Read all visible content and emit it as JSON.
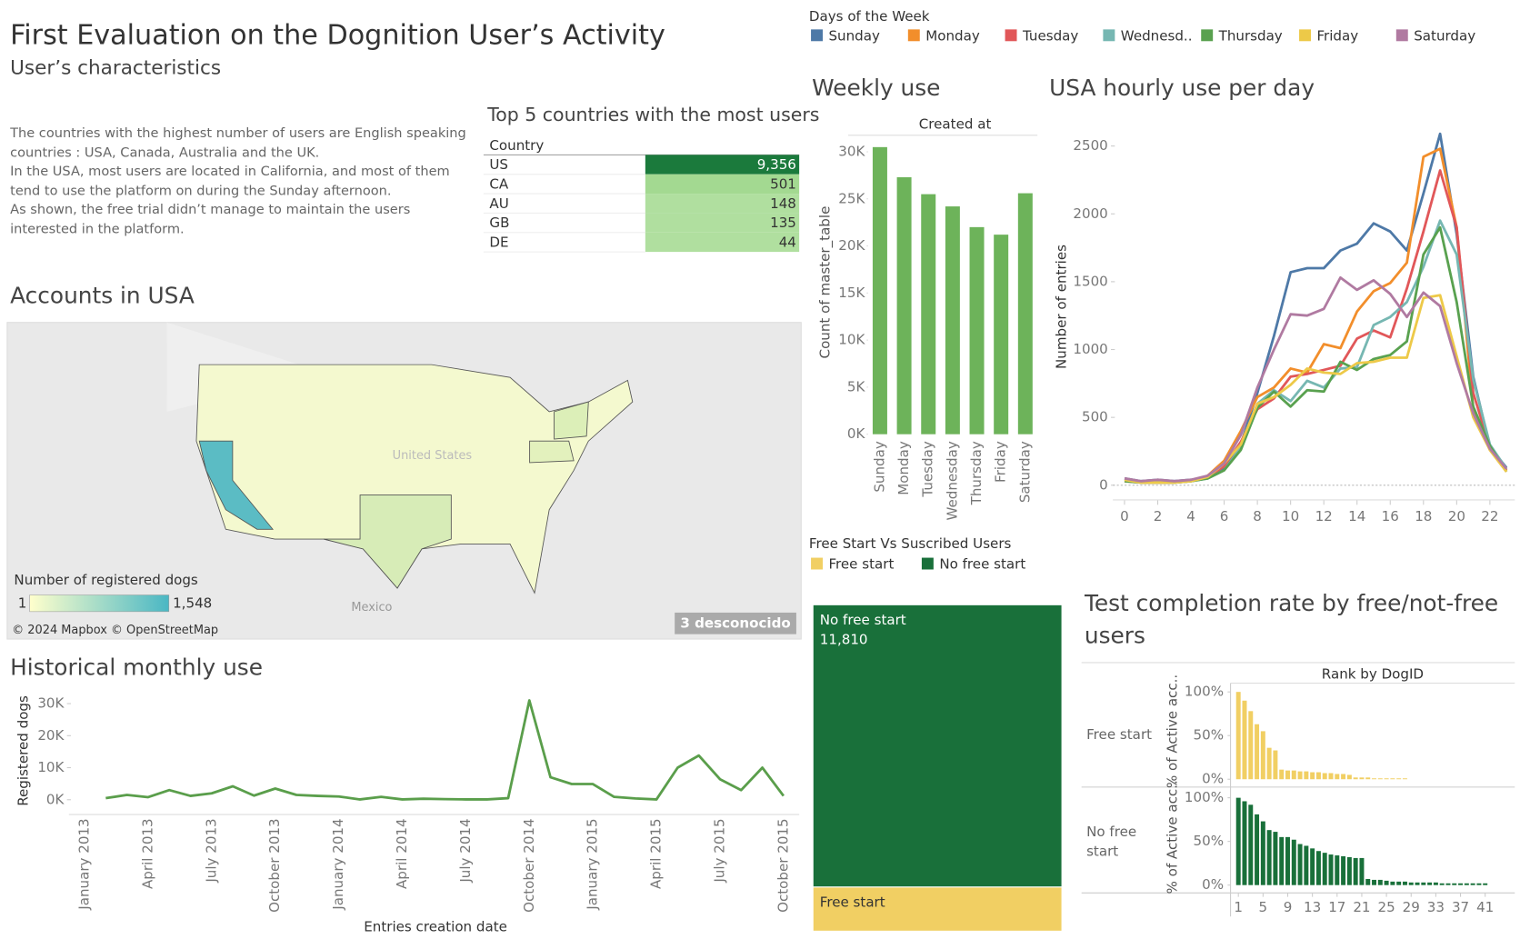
{
  "header": {
    "title": "First Evaluation on the Dognition User’s Activity",
    "subtitle": "User’s characteristics"
  },
  "notes": [
    "The countries with the highest number of users are English speaking countries : USA, Canada, Australia and the UK.",
    "In the USA, most users are located in California, and most of them tend to use the platform on during the Sunday afternoon.",
    "As shown, the free trial didn’t manage to maintain the users interested in the platform."
  ],
  "table": {
    "title": "Top 5 countries with the most users",
    "column": "Country",
    "rows": [
      [
        "US",
        "9,356"
      ],
      [
        "CA",
        "501"
      ],
      [
        "AU",
        "148"
      ],
      [
        "GB",
        "135"
      ],
      [
        "DE",
        "44"
      ]
    ],
    "colors": [
      "#1b7a3c",
      "#a3d991",
      "#b0df9f",
      "#b0df9f",
      "#b0df9f"
    ]
  },
  "map": {
    "title": "Accounts in USA",
    "legend_title": "Number of registered dogs",
    "legend_min": "1",
    "legend_max": "1,548",
    "credit": "© 2024 Mapbox © OpenStreetMap",
    "unknown": "3 desconocido",
    "labels": [
      "Mexico",
      "United States"
    ]
  },
  "chart_data": [
    {
      "type": "bar",
      "title": "Weekly use",
      "subtitle": "Created at",
      "y_label": "Count of master_table",
      "categories": [
        "Sunday",
        "Monday",
        "Tuesday",
        "Wednesday",
        "Thursday",
        "Friday",
        "Saturday"
      ],
      "values": [
        30500,
        27300,
        25500,
        24200,
        22000,
        21200,
        25600
      ],
      "color": "#6db35a",
      "ylim": [
        0,
        32800
      ],
      "yticks": [
        {
          "value": 0,
          "label": "0K"
        },
        {
          "value": 5000,
          "label": "5K"
        },
        {
          "value": 10000,
          "label": "10K"
        },
        {
          "value": 15000,
          "label": "15K"
        },
        {
          "value": 20000,
          "label": "20K"
        },
        {
          "value": 25000,
          "label": "25K"
        },
        {
          "value": 30000,
          "label": "30K"
        }
      ]
    },
    {
      "type": "line",
      "title": "USA hourly use per day",
      "legend_title": "Days of the Week",
      "y_label": "Number of entries",
      "x": [
        0,
        1,
        2,
        3,
        4,
        5,
        6,
        7,
        8,
        9,
        10,
        11,
        12,
        13,
        14,
        15,
        16,
        17,
        18,
        19,
        20,
        21,
        22,
        23
      ],
      "series": [
        {
          "name": "Sunday",
          "color": "#4e79a7",
          "values": [
            50,
            30,
            40,
            30,
            40,
            60,
            120,
            300,
            680,
            1100,
            1570,
            1600,
            1600,
            1730,
            1780,
            1930,
            1870,
            1730,
            2150,
            2590,
            1850,
            800,
            280,
            130
          ]
        },
        {
          "name": "Monday",
          "color": "#f28e2b",
          "values": [
            40,
            20,
            20,
            20,
            30,
            70,
            180,
            400,
            650,
            720,
            860,
            830,
            1040,
            1010,
            1280,
            1430,
            1490,
            1640,
            2420,
            2480,
            1900,
            560,
            260,
            100
          ]
        },
        {
          "name": "Tuesday",
          "color": "#e15759",
          "values": [
            30,
            20,
            20,
            20,
            30,
            60,
            140,
            320,
            560,
            640,
            800,
            820,
            850,
            880,
            1080,
            1140,
            1090,
            1450,
            1870,
            2320,
            1900,
            680,
            280,
            110
          ]
        },
        {
          "name": "Wednesd..",
          "color": "#76b7b2",
          "values": [
            40,
            20,
            30,
            20,
            30,
            50,
            110,
            280,
            600,
            700,
            620,
            770,
            720,
            860,
            870,
            1180,
            1240,
            1350,
            1610,
            1950,
            1700,
            780,
            300,
            120
          ]
        },
        {
          "name": "Thursday",
          "color": "#59a14f",
          "values": [
            30,
            20,
            20,
            20,
            30,
            50,
            110,
            260,
            570,
            690,
            580,
            700,
            690,
            910,
            850,
            930,
            960,
            1060,
            1700,
            1900,
            1350,
            580,
            290,
            100
          ]
        },
        {
          "name": "Friday",
          "color": "#edc948",
          "values": [
            40,
            20,
            20,
            20,
            30,
            60,
            160,
            300,
            600,
            650,
            740,
            860,
            830,
            820,
            900,
            910,
            940,
            940,
            1380,
            1400,
            950,
            500,
            260,
            100
          ]
        },
        {
          "name": "Saturday",
          "color": "#b07aa1",
          "values": [
            50,
            30,
            40,
            30,
            40,
            70,
            160,
            370,
            720,
            1000,
            1260,
            1250,
            1300,
            1530,
            1440,
            1510,
            1410,
            1240,
            1420,
            1320,
            900,
            530,
            270,
            120
          ]
        }
      ],
      "xlim": [
        -0.7,
        23.5
      ],
      "xticks": [
        0,
        2,
        4,
        6,
        8,
        10,
        12,
        14,
        16,
        18,
        20,
        22
      ],
      "ylim": [
        -108,
        2637
      ],
      "yticks": [
        0,
        500,
        1000,
        1500,
        2000,
        2500
      ]
    },
    {
      "type": "line",
      "title": "Historical monthly use",
      "y_label": "Registered dogs",
      "x_label": "Entries creation date",
      "categories": [
        "January 2013",
        null,
        null,
        "April 2013",
        null,
        null,
        "July 2013",
        null,
        null,
        "October 2013",
        null,
        null,
        "January 2014",
        null,
        null,
        "April 2014",
        null,
        null,
        "July 2014",
        null,
        null,
        "October 2014",
        null,
        null,
        "January 2015",
        null,
        null,
        "April 2015",
        null,
        null,
        "July 2015",
        null,
        null,
        "October 2015"
      ],
      "values": [
        null,
        500,
        1500,
        800,
        3000,
        1200,
        2000,
        4200,
        1300,
        3500,
        1500,
        1200,
        1000,
        100,
        900,
        100,
        300,
        200,
        100,
        100,
        500,
        31000,
        7000,
        4900,
        4900,
        900,
        400,
        100,
        10000,
        13800,
        6400,
        3000,
        10000,
        1200
      ],
      "color": "#5a9e4b",
      "ylim": [
        -3700,
        32400
      ],
      "yticks": [
        {
          "value": 0,
          "label": "0K"
        },
        {
          "value": 10000,
          "label": "10K"
        },
        {
          "value": 20000,
          "label": "20K"
        },
        {
          "value": 30000,
          "label": "30K"
        }
      ]
    },
    {
      "type": "treemap",
      "title": "Free Start Vs Suscribed Users",
      "categories": [
        "No free start",
        "Free start"
      ],
      "values": [
        11810,
        1845
      ],
      "value_labels": [
        "11,810",
        null
      ],
      "colors": [
        "#19703a",
        "#f1cf63"
      ],
      "legend_order": [
        1,
        0
      ]
    },
    {
      "type": "bar",
      "title": "Test completion rate by free/not-free users",
      "subtitle": "Rank by DogID",
      "y_label": "% of Active acc..",
      "x": [
        1,
        2,
        3,
        4,
        5,
        6,
        7,
        8,
        9,
        10,
        11,
        12,
        13,
        14,
        15,
        16,
        17,
        18,
        19,
        20,
        21,
        22,
        23,
        24,
        25,
        26,
        27,
        28,
        29,
        30,
        31,
        32,
        33,
        34,
        35,
        36,
        37,
        38,
        39,
        40,
        41
      ],
      "series": [
        {
          "name": "Free start",
          "color": "#f1cf63",
          "values": [
            100,
            90,
            78,
            63,
            55,
            36,
            33,
            11,
            10,
            10,
            9,
            9,
            8,
            8,
            7,
            7,
            6,
            6,
            5,
            2,
            2,
            2,
            1,
            1,
            1,
            1,
            1,
            1,
            null,
            null,
            null,
            null,
            null,
            null,
            null,
            null,
            null,
            null,
            null,
            null,
            null
          ]
        },
        {
          "name": "No free start",
          "color": "#19703a",
          "values": [
            100,
            96,
            92,
            81,
            73,
            63,
            61,
            55,
            55,
            52,
            47,
            45,
            42,
            39,
            37,
            35,
            34,
            33,
            32,
            31,
            31,
            7,
            6,
            6,
            5,
            4,
            4,
            4,
            3,
            3,
            3,
            3,
            3,
            2,
            2,
            2,
            2,
            2,
            2,
            2,
            2
          ]
        }
      ],
      "xlim": [
        -0.27,
        45.8
      ],
      "xticks": [
        1,
        5,
        9,
        13,
        17,
        21,
        25,
        29,
        33,
        37,
        41
      ],
      "ylim": [
        0,
        110
      ],
      "yticks": [
        {
          "value": 0,
          "label": "0%"
        },
        {
          "value": 50,
          "label": "50%"
        },
        {
          "value": 100,
          "label": "100%"
        }
      ]
    }
  ]
}
